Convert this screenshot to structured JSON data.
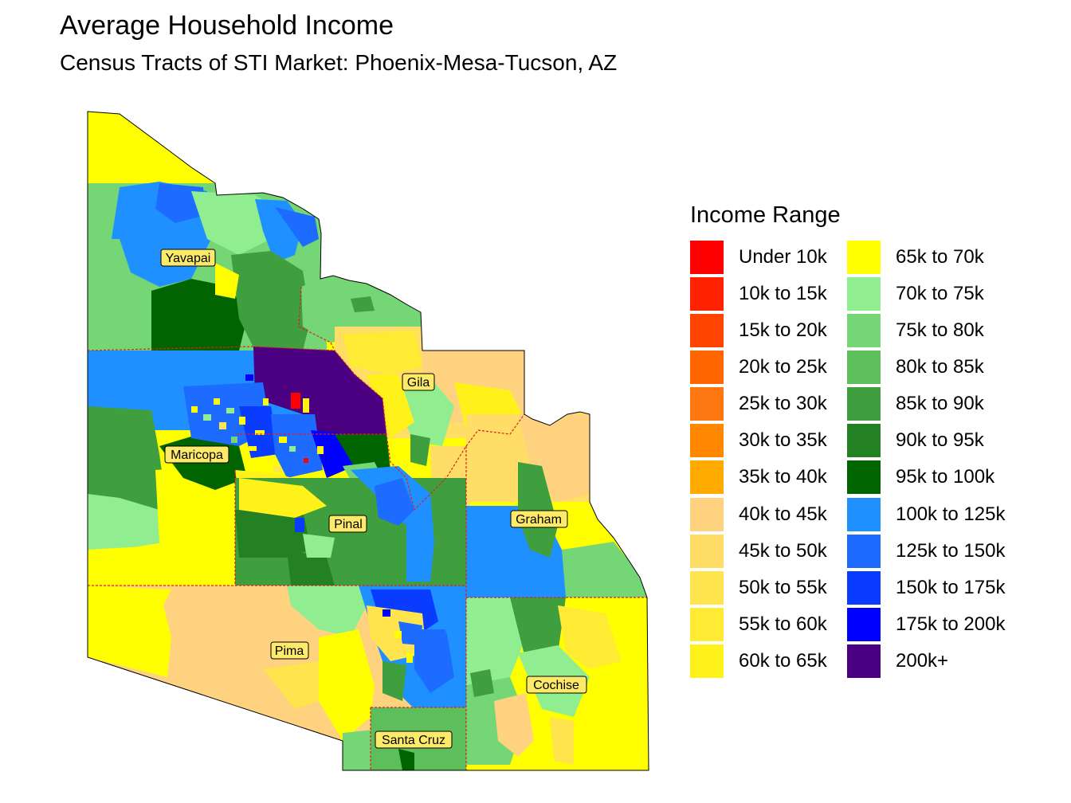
{
  "title": "Average Household Income",
  "subtitle": "Census Tracts of STI Market: Phoenix-Mesa-Tucson, AZ",
  "legend": {
    "title": "Income Range",
    "items": [
      {
        "label": "Under 10k",
        "color": "#ff0000"
      },
      {
        "label": "10k to 15k",
        "color": "#ff2200"
      },
      {
        "label": "15k to 20k",
        "color": "#ff4400"
      },
      {
        "label": "20k to 25k",
        "color": "#ff6600"
      },
      {
        "label": "25k to 30k",
        "color": "#ff7711"
      },
      {
        "label": "30k to 35k",
        "color": "#ff8800"
      },
      {
        "label": "35k to 40k",
        "color": "#ffaa00"
      },
      {
        "label": "40k to 45k",
        "color": "#ffd27f"
      },
      {
        "label": "45k to 50k",
        "color": "#ffdd66"
      },
      {
        "label": "50k to 55k",
        "color": "#ffe44d"
      },
      {
        "label": "55k to 60k",
        "color": "#ffeb33"
      },
      {
        "label": "60k to 65k",
        "color": "#fff21a"
      },
      {
        "label": "65k to 70k",
        "color": "#ffff00"
      },
      {
        "label": "70k to 75k",
        "color": "#90ee90"
      },
      {
        "label": "75k to 80k",
        "color": "#74d674"
      },
      {
        "label": "80k to 85k",
        "color": "#5cbf5c"
      },
      {
        "label": "85k to 90k",
        "color": "#3f9f3f"
      },
      {
        "label": "90k to 95k",
        "color": "#238023"
      },
      {
        "label": "95k to 100k",
        "color": "#006400"
      },
      {
        "label": "100k to 125k",
        "color": "#1e90ff"
      },
      {
        "label": "125k to 150k",
        "color": "#1e6cff"
      },
      {
        "label": "150k to 175k",
        "color": "#0a3cff"
      },
      {
        "label": "175k to 200k",
        "color": "#0000ff"
      },
      {
        "label": "200k+",
        "color": "#4b0082"
      }
    ]
  },
  "counties": {
    "yavapai": "Yavapai",
    "gila": "Gila",
    "maricopa": "Maricopa",
    "pinal": "Pinal",
    "graham": "Graham",
    "pima": "Pima",
    "cochise": "Cochise",
    "santa_cruz": "Santa Cruz"
  },
  "colors": {
    "county_border": "#e0201c",
    "outline": "#000000",
    "label_fill": "#fde96a"
  }
}
